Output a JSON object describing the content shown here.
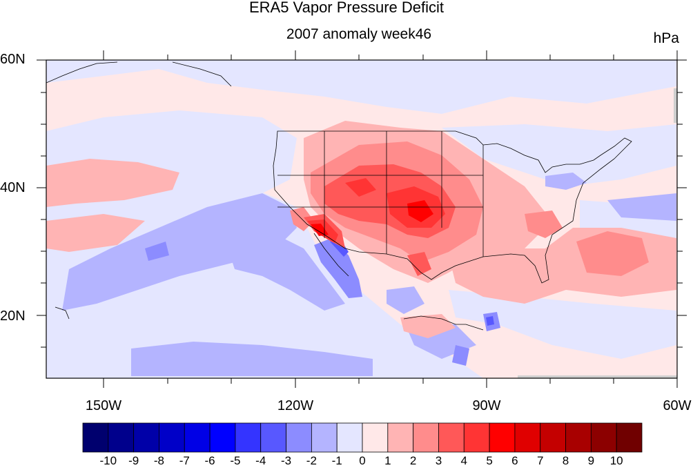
{
  "title": "ERA5 Vapor Pressure Deficit",
  "subtitle": "2007 anomaly week46",
  "units": "hPa",
  "lat_labels": [
    "60N",
    "40N",
    "20N"
  ],
  "lon_labels": [
    "150W",
    "120W",
    "90W",
    "60W"
  ],
  "colorbar": {
    "labels": [
      "-10",
      "-9",
      "-8",
      "-7",
      "-6",
      "-5",
      "-4",
      "-3",
      "-2",
      "-1",
      "0",
      "1",
      "2",
      "3",
      "4",
      "5",
      "6",
      "7",
      "8",
      "9",
      "10"
    ],
    "colors": [
      "#00006e",
      "#00008c",
      "#0000a8",
      "#0000c8",
      "#0000e6",
      "#0000ff",
      "#3434ff",
      "#5858ff",
      "#8c8cff",
      "#b4b4ff",
      "#e4e6ff",
      "#ffe8e8",
      "#ffb4b4",
      "#ff8c8c",
      "#ff5858",
      "#ff3434",
      "#ff0000",
      "#e00000",
      "#c40000",
      "#a80000",
      "#8c0000",
      "#700000"
    ]
  },
  "colors": {
    "background_anomaly": "#ffe8e8",
    "negative_light": "#e4e6ff"
  }
}
